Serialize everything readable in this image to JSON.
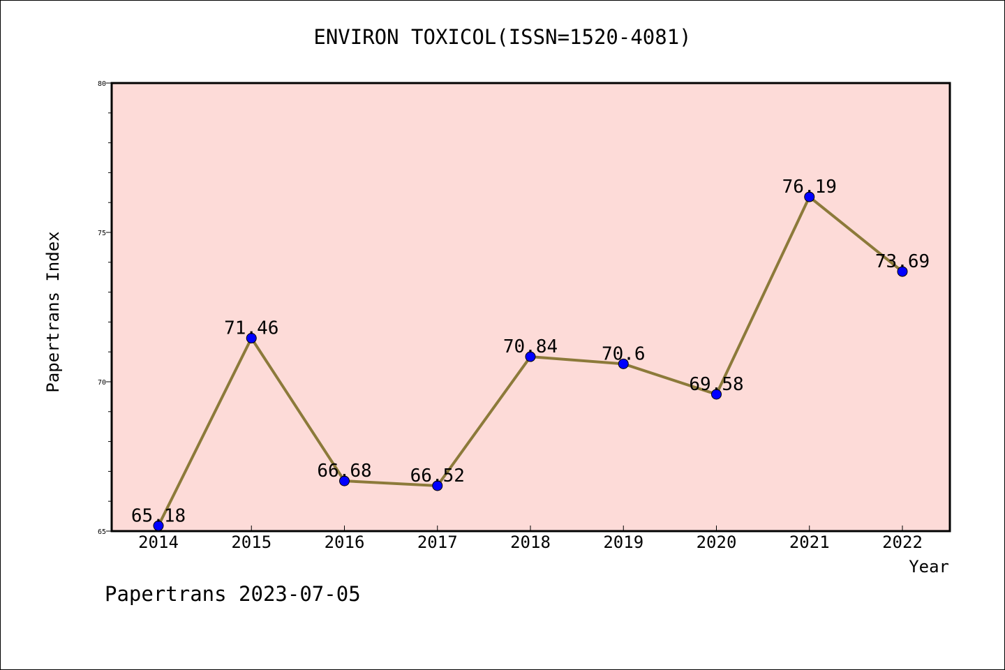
{
  "chart_data": {
    "type": "line",
    "title": "ENVIRON TOXICOL(ISSN=1520-4081)",
    "xlabel": "Year",
    "ylabel": "Papertrans Index",
    "categories": [
      "2014",
      "2015",
      "2016",
      "2017",
      "2018",
      "2019",
      "2020",
      "2021",
      "2022"
    ],
    "series": [
      {
        "values": [
          65.18,
          71.46,
          66.68,
          66.52,
          70.84,
          70.6,
          69.58,
          76.19,
          73.69
        ],
        "labels": [
          "65.18",
          "71.46",
          "66.68",
          "66.52",
          "70.84",
          "70.6",
          "69.58",
          "76.19",
          "73.69"
        ]
      }
    ],
    "ylim": [
      65,
      80
    ],
    "yticks": [
      65,
      70,
      75,
      80
    ],
    "ytick_labels": [
      "65",
      "70",
      "75",
      "80"
    ],
    "grid": false,
    "colors": {
      "plot_background": "#fddbd8",
      "line": "#8c7a3a",
      "marker": "#0000ff"
    }
  },
  "footer": "Papertrans 2023-07-05"
}
